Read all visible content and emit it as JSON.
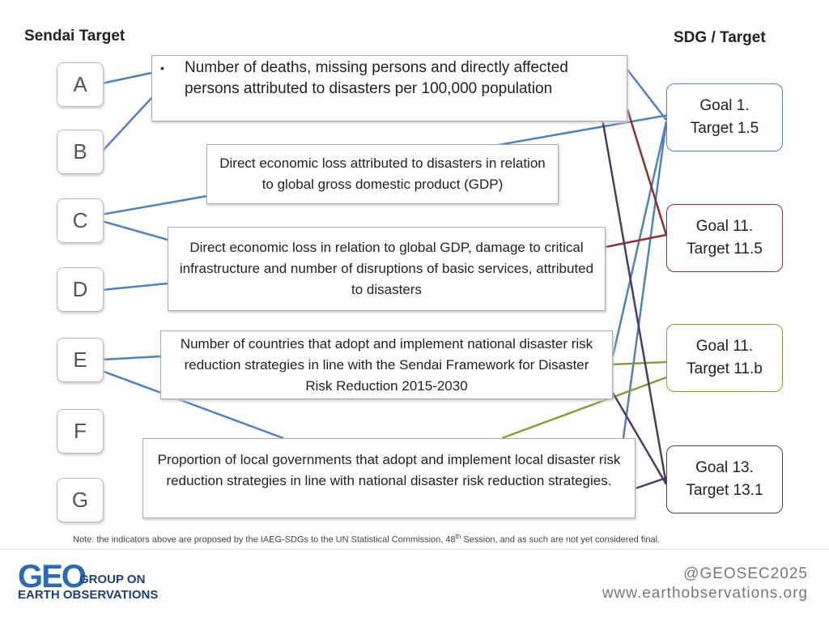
{
  "header": {
    "left": "Sendai Target",
    "right": "SDG / Target"
  },
  "sendai_targets": [
    "A",
    "B",
    "C",
    "D",
    "E",
    "F",
    "G"
  ],
  "indicators": [
    {
      "bullet": "•",
      "text": "Number of deaths, missing persons and directly affected persons attributed to disasters per 100,000 population"
    },
    {
      "text": "Direct economic loss attributed to disasters in relation to global gross domestic product (GDP)"
    },
    {
      "text": "Direct economic loss in relation to global GDP, damage to critical infrastructure and number of disruptions of basic services, attributed to disasters"
    },
    {
      "text": "Number of countries that adopt and implement national disaster risk reduction strategies in line with the Sendai Framework for Disaster Risk Reduction 2015-2030"
    },
    {
      "text": "Proportion of local governments that adopt and implement local disaster risk reduction strategies in line with national disaster risk reduction strategies."
    }
  ],
  "goals": [
    {
      "goal": "Goal 1.",
      "target": "Target 1.5"
    },
    {
      "goal": "Goal 11.",
      "target": "Target 11.5"
    },
    {
      "goal": "Goal 11.",
      "target": "Target 11.b"
    },
    {
      "goal": "Goal 13.",
      "target": "Target 13.1"
    }
  ],
  "note": {
    "text": "Note: the indicators above are proposed by the IAEG-SDGs to the UN Statistical Commission, 48",
    "sup": "th",
    "rest": " Session, and as such are not yet considered final."
  },
  "footer": {
    "logo_mark": "GEO",
    "org_line1": "GROUP ON",
    "org_line2": "EARTH OBSERVATIONS",
    "handle": "@GEOSEC2025",
    "url": "www.earthobservations.org"
  }
}
